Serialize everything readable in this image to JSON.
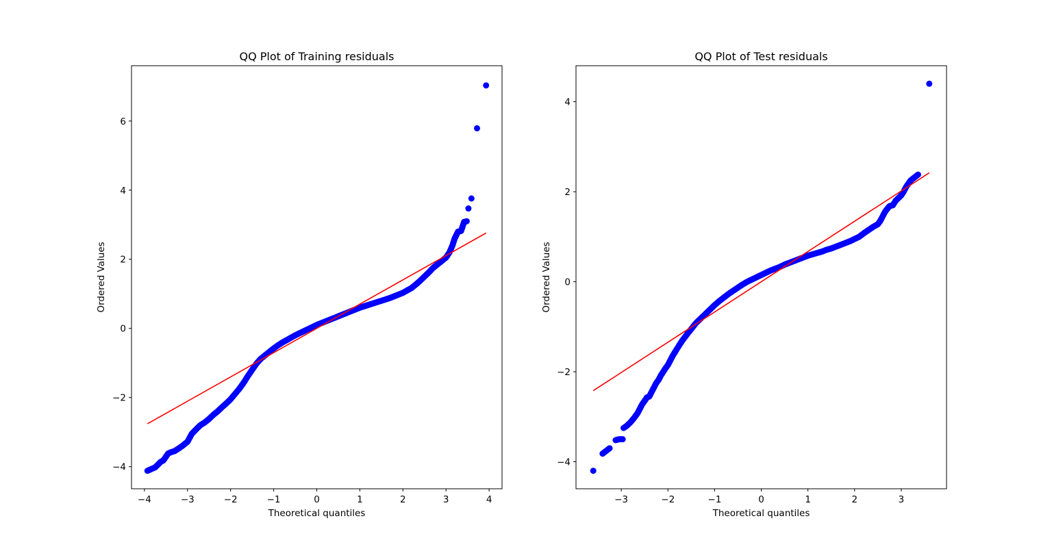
{
  "chart_data": [
    {
      "type": "scatter",
      "title": "QQ Plot of Training residuals",
      "xlabel": "Theoretical quantiles",
      "ylabel": "Ordered Values",
      "xlim": [
        -4.3,
        4.3
      ],
      "ylim": [
        -4.64,
        7.6
      ],
      "xticks": [
        -4,
        -3,
        -2,
        -1,
        0,
        1,
        2,
        3,
        4
      ],
      "yticks": [
        -4,
        -2,
        0,
        2,
        4,
        6
      ],
      "grid": false,
      "fit_line": {
        "color": "#ff0000",
        "x": [
          -3.93,
          3.93
        ],
        "y": [
          -2.76,
          2.76
        ]
      },
      "points_color": "#0000ff",
      "points": [
        [
          -3.93,
          -4.12
        ],
        [
          -3.75,
          -4.02
        ],
        [
          -3.62,
          -3.86
        ],
        [
          -3.56,
          -3.82
        ],
        [
          -3.45,
          -3.62
        ],
        [
          -3.38,
          -3.58
        ],
        [
          -3.3,
          -3.55
        ],
        [
          -3.2,
          -3.47
        ],
        [
          -3.1,
          -3.38
        ],
        [
          -3.0,
          -3.28
        ],
        [
          -2.9,
          -3.05
        ],
        [
          -2.8,
          -2.92
        ],
        [
          -2.7,
          -2.8
        ],
        [
          -2.6,
          -2.72
        ],
        [
          -2.5,
          -2.62
        ],
        [
          -2.4,
          -2.5
        ],
        [
          -2.3,
          -2.4
        ],
        [
          -2.2,
          -2.28
        ],
        [
          -2.1,
          -2.17
        ],
        [
          -2.0,
          -2.05
        ],
        [
          -1.9,
          -1.9
        ],
        [
          -1.8,
          -1.75
        ],
        [
          -1.7,
          -1.58
        ],
        [
          -1.6,
          -1.38
        ],
        [
          -1.5,
          -1.2
        ],
        [
          -1.4,
          -1.02
        ],
        [
          -1.3,
          -0.88
        ],
        [
          -1.2,
          -0.78
        ],
        [
          -1.1,
          -0.68
        ],
        [
          -1.0,
          -0.58
        ],
        [
          -0.9,
          -0.49
        ],
        [
          -0.8,
          -0.41
        ],
        [
          -0.7,
          -0.34
        ],
        [
          -0.6,
          -0.27
        ],
        [
          -0.5,
          -0.2
        ],
        [
          -0.4,
          -0.14
        ],
        [
          -0.3,
          -0.08
        ],
        [
          -0.2,
          -0.02
        ],
        [
          -0.1,
          0.04
        ],
        [
          0.0,
          0.1
        ],
        [
          0.1,
          0.15
        ],
        [
          0.2,
          0.2
        ],
        [
          0.3,
          0.25
        ],
        [
          0.4,
          0.3
        ],
        [
          0.5,
          0.35
        ],
        [
          0.6,
          0.4
        ],
        [
          0.7,
          0.45
        ],
        [
          0.8,
          0.5
        ],
        [
          0.9,
          0.55
        ],
        [
          1.0,
          0.6
        ],
        [
          1.1,
          0.64
        ],
        [
          1.2,
          0.68
        ],
        [
          1.3,
          0.72
        ],
        [
          1.4,
          0.76
        ],
        [
          1.5,
          0.8
        ],
        [
          1.6,
          0.84
        ],
        [
          1.7,
          0.88
        ],
        [
          1.8,
          0.93
        ],
        [
          1.9,
          0.98
        ],
        [
          2.0,
          1.03
        ],
        [
          2.1,
          1.1
        ],
        [
          2.2,
          1.17
        ],
        [
          2.3,
          1.27
        ],
        [
          2.4,
          1.38
        ],
        [
          2.5,
          1.5
        ],
        [
          2.6,
          1.62
        ],
        [
          2.7,
          1.75
        ],
        [
          2.8,
          1.85
        ],
        [
          2.9,
          1.95
        ],
        [
          3.0,
          2.05
        ],
        [
          3.08,
          2.2
        ],
        [
          3.15,
          2.4
        ],
        [
          3.2,
          2.6
        ],
        [
          3.28,
          2.8
        ],
        [
          3.35,
          2.82
        ],
        [
          3.42,
          3.08
        ],
        [
          3.48,
          3.1
        ],
        [
          3.52,
          3.47
        ],
        [
          3.59,
          3.76
        ],
        [
          3.72,
          5.79
        ],
        [
          3.93,
          7.03
        ]
      ]
    },
    {
      "type": "scatter",
      "title": "QQ Plot of Test residuals",
      "xlabel": "Theoretical quantiles",
      "ylabel": "Ordered Values",
      "xlim": [
        -3.97,
        3.97
      ],
      "ylim": [
        -4.6,
        4.8
      ],
      "xticks": [
        -3,
        -2,
        -1,
        0,
        1,
        2,
        3
      ],
      "yticks": [
        -4,
        -2,
        0,
        2,
        4
      ],
      "grid": false,
      "fit_line": {
        "color": "#ff0000",
        "x": [
          -3.6,
          3.6
        ],
        "y": [
          -2.42,
          2.42
        ]
      },
      "points_color": "#0000ff",
      "points": [
        [
          -3.6,
          -4.2
        ],
        [
          -3.4,
          -3.82
        ],
        [
          -3.25,
          -3.7
        ],
        [
          -3.12,
          -3.52
        ],
        [
          -3.05,
          -3.5
        ],
        [
          -2.97,
          -3.5
        ],
        [
          -2.95,
          -3.25
        ],
        [
          -2.88,
          -3.2
        ],
        [
          -2.8,
          -3.12
        ],
        [
          -2.72,
          -3.02
        ],
        [
          -2.65,
          -2.92
        ],
        [
          -2.6,
          -2.82
        ],
        [
          -2.55,
          -2.72
        ],
        [
          -2.5,
          -2.65
        ],
        [
          -2.45,
          -2.57
        ],
        [
          -2.4,
          -2.55
        ],
        [
          -2.35,
          -2.45
        ],
        [
          -2.3,
          -2.35
        ],
        [
          -2.25,
          -2.25
        ],
        [
          -2.2,
          -2.18
        ],
        [
          -2.15,
          -2.08
        ],
        [
          -2.1,
          -2.0
        ],
        [
          -2.05,
          -1.92
        ],
        [
          -2.0,
          -1.85
        ],
        [
          -1.95,
          -1.75
        ],
        [
          -1.9,
          -1.65
        ],
        [
          -1.8,
          -1.48
        ],
        [
          -1.7,
          -1.32
        ],
        [
          -1.6,
          -1.18
        ],
        [
          -1.5,
          -1.05
        ],
        [
          -1.4,
          -0.92
        ],
        [
          -1.3,
          -0.82
        ],
        [
          -1.2,
          -0.72
        ],
        [
          -1.1,
          -0.62
        ],
        [
          -1.0,
          -0.52
        ],
        [
          -0.9,
          -0.43
        ],
        [
          -0.8,
          -0.35
        ],
        [
          -0.7,
          -0.27
        ],
        [
          -0.6,
          -0.2
        ],
        [
          -0.5,
          -0.13
        ],
        [
          -0.4,
          -0.06
        ],
        [
          -0.3,
          0.0
        ],
        [
          -0.2,
          0.05
        ],
        [
          -0.1,
          0.1
        ],
        [
          0.0,
          0.15
        ],
        [
          0.1,
          0.2
        ],
        [
          0.2,
          0.25
        ],
        [
          0.3,
          0.29
        ],
        [
          0.4,
          0.33
        ],
        [
          0.5,
          0.38
        ],
        [
          0.6,
          0.42
        ],
        [
          0.7,
          0.46
        ],
        [
          0.8,
          0.5
        ],
        [
          0.9,
          0.54
        ],
        [
          1.0,
          0.58
        ],
        [
          1.1,
          0.61
        ],
        [
          1.2,
          0.64
        ],
        [
          1.3,
          0.67
        ],
        [
          1.4,
          0.71
        ],
        [
          1.5,
          0.74
        ],
        [
          1.6,
          0.78
        ],
        [
          1.7,
          0.82
        ],
        [
          1.8,
          0.86
        ],
        [
          1.9,
          0.9
        ],
        [
          2.0,
          0.95
        ],
        [
          2.1,
          1.0
        ],
        [
          2.2,
          1.08
        ],
        [
          2.3,
          1.15
        ],
        [
          2.4,
          1.22
        ],
        [
          2.5,
          1.28
        ],
        [
          2.55,
          1.35
        ],
        [
          2.6,
          1.45
        ],
        [
          2.65,
          1.55
        ],
        [
          2.7,
          1.62
        ],
        [
          2.75,
          1.68
        ],
        [
          2.82,
          1.7
        ],
        [
          2.88,
          1.8
        ],
        [
          2.93,
          1.85
        ],
        [
          3.0,
          1.92
        ],
        [
          3.05,
          2.0
        ],
        [
          3.1,
          2.1
        ],
        [
          3.2,
          2.25
        ],
        [
          3.36,
          2.38
        ],
        [
          3.6,
          4.4
        ]
      ]
    }
  ]
}
